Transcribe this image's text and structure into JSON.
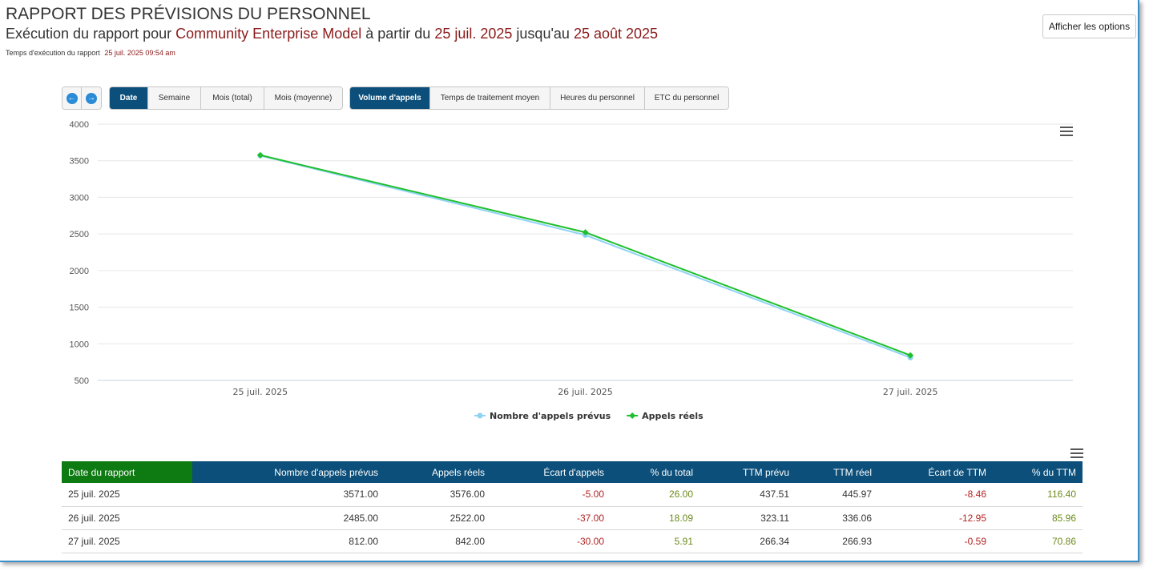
{
  "header": {
    "title": "RAPPORT DES PRÉVISIONS DU PERSONNEL",
    "subtitle_prefix": "Exécution du rapport pour",
    "entity": "Community Enterprise Model",
    "subtitle_from": "à partir du",
    "start_date": "25 juil. 2025",
    "subtitle_to": "jusqu'au",
    "end_date": "25 août 2025",
    "runtime_label": "Temps d'exécution du rapport",
    "runtime_value": "25 juil. 2025 09:54 am",
    "options_button": "Afficher les options"
  },
  "period_tabs": [
    {
      "label": "Date",
      "active": true
    },
    {
      "label": "Semaine",
      "active": false
    },
    {
      "label": "Mois (total)",
      "active": false
    },
    {
      "label": "Mois (moyenne)",
      "active": false
    }
  ],
  "metric_tabs": [
    {
      "label": "Volume d'appels",
      "active": true
    },
    {
      "label": "Temps de traitement moyen",
      "active": false
    },
    {
      "label": "Heures du personnel",
      "active": false
    },
    {
      "label": "ETC du personnel",
      "active": false
    }
  ],
  "nav": {
    "prev_icon": "arrow-left-circle-icon",
    "next_icon": "arrow-right-circle-icon"
  },
  "chart_data": {
    "type": "line",
    "categories": [
      "25 juil. 2025",
      "26 juil. 2025",
      "27 juil. 2025"
    ],
    "series": [
      {
        "name": "Nombre d'appels prévus",
        "values": [
          3571,
          2485,
          812
        ],
        "color": "#8fd3f4"
      },
      {
        "name": "Appels réels",
        "values": [
          3576,
          2522,
          842
        ],
        "color": "#1fbf2e"
      }
    ],
    "ylim": [
      500,
      4000
    ],
    "yticks": [
      500,
      1000,
      1500,
      2000,
      2500,
      3000,
      3500,
      4000
    ],
    "grid": true,
    "legend": "bottom-center"
  },
  "table": {
    "columns": [
      "Date du rapport",
      "Nombre d'appels prévus",
      "Appels réels",
      "Écart d'appels",
      "% du total",
      "TTM prévu",
      "TTM réel",
      "Écart de TTM",
      "% du TTM"
    ],
    "rows": [
      [
        "25 juil. 2025",
        "3571.00",
        "3576.00",
        "-5.00",
        "26.00",
        "437.51",
        "445.97",
        "-8.46",
        "116.40"
      ],
      [
        "26 juil. 2025",
        "2485.00",
        "2522.00",
        "-37.00",
        "18.09",
        "323.11",
        "336.06",
        "-12.95",
        "85.96"
      ],
      [
        "27 juil. 2025",
        "812.00",
        "842.00",
        "-30.00",
        "5.91",
        "266.34",
        "266.93",
        "-0.59",
        "70.86"
      ]
    ]
  },
  "colors": {
    "accent": "#0b4f7a",
    "first_col_header": "#0e7a12",
    "negative": "#b22222",
    "percent": "#6a8a1a",
    "highlight": "#8b1a1a"
  }
}
